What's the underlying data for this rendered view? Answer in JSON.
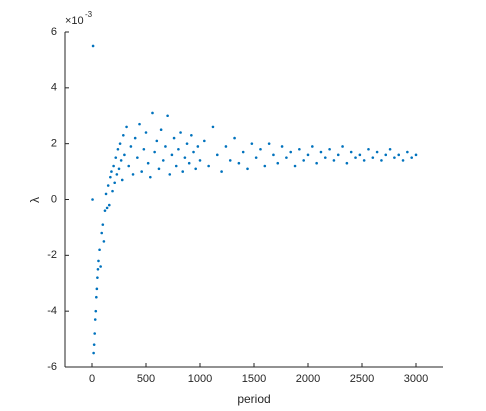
{
  "chart_data": {
    "type": "scatter",
    "x_label": "period",
    "y_label": "λ",
    "y_multiplier": {
      "base": "×10",
      "exponent": "-3"
    },
    "color": "#0072BD",
    "xlim": [
      -250,
      3250
    ],
    "ylim": [
      -6,
      6
    ],
    "xticks": [
      0,
      500,
      1000,
      1500,
      2000,
      2500,
      3000
    ],
    "yticks": [
      -6,
      -4,
      -2,
      0,
      2,
      4,
      6
    ],
    "x": [
      10,
      5,
      15,
      20,
      25,
      30,
      35,
      40,
      45,
      50,
      55,
      60,
      70,
      80,
      90,
      100,
      110,
      120,
      130,
      140,
      150,
      160,
      170,
      180,
      190,
      200,
      210,
      220,
      230,
      240,
      250,
      260,
      270,
      280,
      290,
      300,
      320,
      340,
      360,
      380,
      400,
      420,
      440,
      460,
      480,
      500,
      520,
      540,
      560,
      580,
      600,
      620,
      640,
      660,
      680,
      700,
      720,
      740,
      760,
      780,
      800,
      820,
      840,
      860,
      880,
      900,
      920,
      940,
      960,
      980,
      1000,
      1040,
      1080,
      1120,
      1160,
      1200,
      1240,
      1280,
      1320,
      1360,
      1400,
      1440,
      1480,
      1520,
      1560,
      1600,
      1640,
      1680,
      1720,
      1760,
      1800,
      1840,
      1880,
      1920,
      1960,
      2000,
      2040,
      2080,
      2120,
      2160,
      2200,
      2240,
      2280,
      2320,
      2360,
      2400,
      2440,
      2480,
      2520,
      2560,
      2600,
      2640,
      2680,
      2720,
      2760,
      2800,
      2840,
      2880,
      2920,
      2960,
      3000
    ],
    "values": [
      5.5,
      0,
      -5.5,
      -5.2,
      -4.8,
      -4.3,
      -4.0,
      -3.5,
      -3.2,
      -2.8,
      -2.5,
      -2.2,
      -1.8,
      -2.4,
      -1.2,
      -0.9,
      -1.5,
      -0.4,
      0.2,
      -0.3,
      0.5,
      -0.2,
      0.8,
      1.0,
      0.3,
      1.2,
      0.6,
      1.5,
      0.9,
      1.8,
      1.1,
      2.0,
      1.4,
      0.7,
      2.3,
      1.6,
      2.6,
      1.2,
      1.9,
      0.9,
      2.2,
      1.5,
      2.7,
      1.0,
      1.8,
      2.4,
      1.3,
      0.8,
      3.1,
      1.7,
      2.1,
      1.1,
      2.5,
      1.4,
      1.9,
      3.0,
      0.9,
      1.6,
      2.2,
      1.2,
      1.8,
      2.4,
      1.0,
      1.5,
      2.0,
      1.3,
      2.3,
      1.7,
      1.1,
      1.9,
      1.4,
      2.1,
      1.2,
      2.6,
      1.6,
      1.0,
      1.9,
      1.4,
      2.2,
      1.3,
      1.7,
      1.1,
      2.0,
      1.5,
      1.8,
      1.2,
      2.0,
      1.6,
      1.3,
      1.9,
      1.5,
      1.7,
      1.2,
      1.8,
      1.4,
      1.6,
      1.9,
      1.3,
      1.7,
      1.5,
      1.8,
      1.4,
      1.6,
      1.9,
      1.3,
      1.7,
      1.5,
      1.6,
      1.4,
      1.8,
      1.5,
      1.7,
      1.4,
      1.6,
      1.8,
      1.5,
      1.6,
      1.4,
      1.7,
      1.5,
      1.6
    ]
  }
}
